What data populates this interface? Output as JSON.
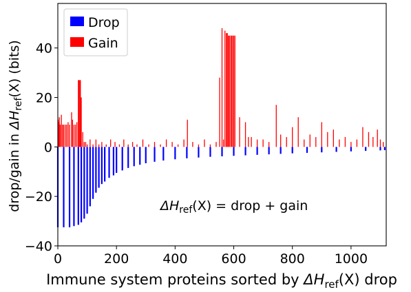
{
  "chart_data": {
    "type": "bar",
    "xlabel_text": "Immune system proteins sorted by ",
    "xlabel_math": "ΔH",
    "xlabel_sub": "ref",
    "xlabel_rest": "(X) drop",
    "ylabel_text": "drop/gain in ",
    "ylabel_math": "ΔH",
    "ylabel_sub": "ref",
    "ylabel_rest": "(X) (bits)",
    "annotation": {
      "math": "ΔH",
      "sub": "ref",
      "rest": "(X) =  drop + gain"
    },
    "xlim": [
      0,
      1120
    ],
    "ylim": [
      -40,
      58
    ],
    "x_ticks": [
      0,
      200,
      400,
      600,
      800,
      1000
    ],
    "x_tick_labels": [
      "0",
      "200",
      "400",
      "600",
      "800",
      "1000"
    ],
    "y_ticks": [
      -40,
      -20,
      0,
      20,
      40
    ],
    "y_tick_labels": [
      "−40",
      "−20",
      "0",
      "20",
      "40"
    ],
    "legend": {
      "placement": "top-left",
      "entries": [
        {
          "label": "Drop",
          "color": "#0000ff"
        },
        {
          "label": "Gain",
          "color": "#ff0000"
        }
      ]
    },
    "grid": false,
    "series": [
      {
        "name": "Drop",
        "color": "#0000ff",
        "x": [
          0,
          20,
          40,
          55,
          70,
          80,
          90,
          100,
          110,
          120,
          130,
          140,
          150,
          160,
          175,
          190,
          200,
          220,
          240,
          260,
          280,
          300,
          330,
          360,
          400,
          440,
          480,
          520,
          560,
          600,
          640,
          680,
          720,
          760,
          800,
          850,
          900,
          950,
          1000,
          1050,
          1100,
          1115
        ],
        "values": [
          -32.5,
          -32.5,
          -32.5,
          -32,
          -31.5,
          -30.5,
          -29,
          -27,
          -24,
          -21,
          -18.5,
          -16.5,
          -15,
          -14,
          -12.5,
          -11.5,
          -10.5,
          -9.5,
          -8.5,
          -7.8,
          -7.2,
          -6.6,
          -6,
          -5.5,
          -5,
          -4.6,
          -4.3,
          -4,
          -3.8,
          -3.6,
          -3.4,
          -3.2,
          -3,
          -2.8,
          -2.6,
          -2.4,
          -2.2,
          -2,
          -1.8,
          -1.6,
          -1.4,
          -1.3
        ]
      },
      {
        "name": "Gain",
        "color": "#ff0000",
        "x": [
          1,
          3,
          5,
          8,
          12,
          16,
          20,
          25,
          30,
          35,
          40,
          47,
          50,
          55,
          60,
          65,
          70,
          72,
          75,
          77,
          80,
          85,
          90,
          95,
          100,
          110,
          120,
          130,
          140,
          150,
          165,
          180,
          195,
          210,
          225,
          240,
          255,
          270,
          290,
          310,
          330,
          350,
          370,
          390,
          410,
          430,
          442,
          460,
          480,
          500,
          520,
          540,
          552,
          560,
          565,
          570,
          575,
          578,
          582,
          585,
          590,
          592,
          596,
          600,
          604,
          620,
          640,
          650,
          660,
          680,
          700,
          720,
          745,
          760,
          780,
          800,
          820,
          840,
          860,
          880,
          900,
          920,
          940,
          960,
          980,
          1000,
          1020,
          1040,
          1060,
          1075,
          1090,
          1100,
          1110
        ],
        "values": [
          11,
          10,
          12,
          9,
          13,
          9,
          9,
          9,
          9,
          10,
          9,
          14,
          11,
          9,
          9,
          10,
          27,
          27,
          27,
          27,
          20,
          6,
          2,
          2,
          1,
          3,
          1,
          3,
          1,
          2,
          1,
          3,
          2,
          1,
          3,
          1,
          2,
          1,
          3,
          1,
          2,
          1,
          3,
          2,
          1,
          3,
          11,
          2,
          1,
          3,
          1,
          2,
          28,
          48,
          3,
          47,
          46,
          46,
          45,
          45,
          45,
          45,
          45,
          45,
          45,
          12,
          10,
          4,
          4,
          3,
          3,
          2,
          17,
          5,
          4,
          8,
          12,
          3,
          5,
          4,
          10,
          6,
          7,
          3,
          4,
          2,
          3,
          8,
          6,
          4,
          7,
          3,
          2
        ]
      }
    ]
  }
}
